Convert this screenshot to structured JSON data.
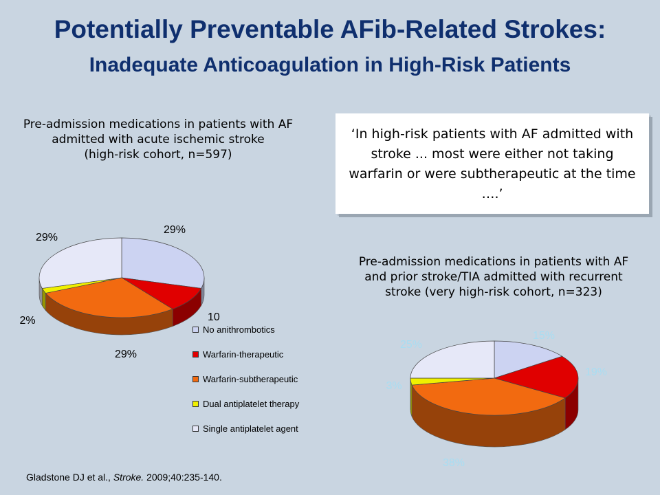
{
  "title": "Potentially Preventable AFib-Related Strokes:",
  "subtitle": "Inadequate Anticoagulation in High-Risk Patients",
  "quote": "‘In high-risk patients with AF admitted with stroke ... most were either not taking warfarin or were subtherapeutic at the time ….’",
  "citation": {
    "authors": "Gladstone DJ et al., ",
    "journal": "Stroke.",
    "details": " 2009;40:235-140."
  },
  "legend": [
    {
      "label": "No anithrombotics",
      "color": "#ccd3f2"
    },
    {
      "label": "Warfarin-therapeutic",
      "color": "#e00000"
    },
    {
      "label": "Warfarin-subtherapeutic",
      "color": "#f26a10"
    },
    {
      "label": "Dual antiplatelet therapy",
      "color": "#f0f000"
    },
    {
      "label": "Single antiplatelet agent",
      "color": "#e6e8f8"
    }
  ],
  "chart_data": [
    {
      "type": "pie",
      "caption": "Pre-admission medications in patients with AF\nadmitted with acute ischemic stroke\n(high-risk cohort, n=597)",
      "label_color": "#000000",
      "slices": [
        {
          "category": "No anithrombotics",
          "value": 29,
          "label": "29%"
        },
        {
          "category": "Warfarin-therapeutic",
          "value": 10,
          "label": "10%"
        },
        {
          "category": "Warfarin-subtherapeutic",
          "value": 29,
          "label": "29%"
        },
        {
          "category": "Dual antiplatelet therapy",
          "value": 2,
          "label": "2%"
        },
        {
          "category": "Single antiplatelet agent",
          "value": 29,
          "label": "29%"
        }
      ]
    },
    {
      "type": "pie",
      "caption": "Pre-admission medications in patients with AF\nand prior stroke/TIA admitted with recurrent\nstroke (very high-risk cohort, n=323)",
      "label_color": "#a8ddf2",
      "slices": [
        {
          "category": "No anithrombotics",
          "value": 15,
          "label": "15%"
        },
        {
          "category": "Warfarin-therapeutic",
          "value": 19,
          "label": "19%"
        },
        {
          "category": "Warfarin-subtherapeutic",
          "value": 38,
          "label": "38%"
        },
        {
          "category": "Dual antiplatelet therapy",
          "value": 3,
          "label": "3%"
        },
        {
          "category": "Single antiplatelet agent",
          "value": 25,
          "label": "25%"
        }
      ]
    }
  ]
}
